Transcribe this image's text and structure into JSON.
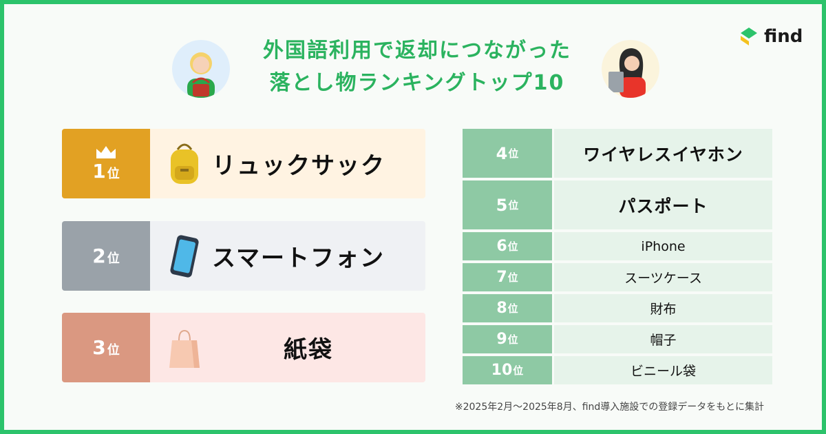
{
  "title": {
    "line1": "外国語利用で返却につながった",
    "line2": "落とし物ランキングトップ10"
  },
  "brand": {
    "name": "find",
    "color": "#2cc36b"
  },
  "top3": [
    {
      "rank": "1",
      "unit": "位",
      "label": "リュックサック",
      "icon": "backpack-icon",
      "badge": "crown-icon"
    },
    {
      "rank": "2",
      "unit": "位",
      "label": "スマートフォン",
      "icon": "smartphone-icon"
    },
    {
      "rank": "3",
      "unit": "位",
      "label": "紙袋",
      "icon": "paper-bag-icon"
    }
  ],
  "others": [
    {
      "rank": "4",
      "unit": "位",
      "label": "ワイヤレスイヤホン"
    },
    {
      "rank": "5",
      "unit": "位",
      "label": "パスポート"
    },
    {
      "rank": "6",
      "unit": "位",
      "label": "iPhone"
    },
    {
      "rank": "7",
      "unit": "位",
      "label": "スーツケース"
    },
    {
      "rank": "8",
      "unit": "位",
      "label": "財布"
    },
    {
      "rank": "9",
      "unit": "位",
      "label": "帽子"
    },
    {
      "rank": "10",
      "unit": "位",
      "label": "ビニール袋"
    }
  ],
  "footnote": "※2025年2月〜2025年8月、find導入施設での登録データをもとに集計",
  "colors": {
    "gold": "#e2a123",
    "silver": "#9aa2a9",
    "bronze": "#da9881",
    "green_rank": "#8ec9a4",
    "title_green": "#2bb35f"
  }
}
